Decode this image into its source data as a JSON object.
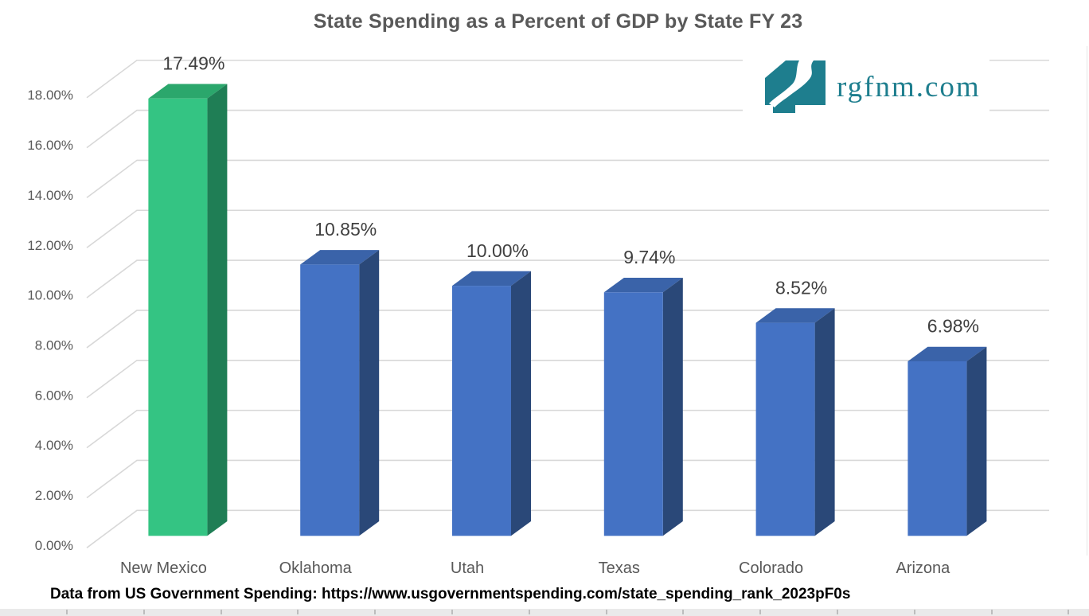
{
  "header": {
    "title": "State Spending as a Percent of GDP by State FY 23"
  },
  "logo": {
    "text": "rgfnm.com",
    "color": "#1E7E8E",
    "mark": "new-mexico-river-icon"
  },
  "footer": {
    "text": "Data from US Government Spending: https://www.usgovernmentspending.com/state_spending_rank_2023pF0s"
  },
  "chart_data": {
    "type": "bar",
    "style": "3d-column",
    "title": "State Spending as a Percent of GDP by State FY 23",
    "categories": [
      "New Mexico",
      "Oklahoma",
      "Utah",
      "Texas",
      "Colorado",
      "Arizona"
    ],
    "values": [
      17.49,
      10.85,
      10.0,
      9.74,
      8.52,
      6.98
    ],
    "data_labels": [
      "17.49%",
      "10.85%",
      "10.00%",
      "9.74%",
      "8.52%",
      "6.98%"
    ],
    "xlabel": "",
    "ylabel": "",
    "ylim": [
      0,
      18
    ],
    "ytick_step": 2,
    "yticks": [
      "0.00%",
      "2.00%",
      "4.00%",
      "6.00%",
      "8.00%",
      "10.00%",
      "12.00%",
      "14.00%",
      "16.00%",
      "18.00%"
    ],
    "grid": true,
    "legend": "none",
    "highlight_index": 0,
    "colors": {
      "highlight_front": "#34C483",
      "highlight_top": "#2BA76C",
      "highlight_side": "#1F7E55",
      "normal_front": "#4472C4",
      "normal_top": "#3A63A9",
      "normal_side": "#2A4878",
      "gridline": "#D8D8D8",
      "axis_text": "#595959",
      "category_text": "#595959",
      "data_label_text": "#404040",
      "title_text": "#595959"
    }
  }
}
